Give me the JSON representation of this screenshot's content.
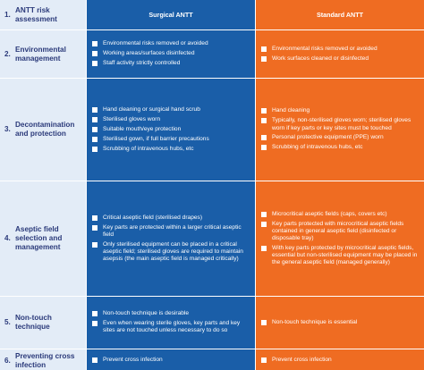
{
  "header": {
    "step": "1.",
    "title": "ANTT risk assessment",
    "col_surgical": "Surgical ANTT",
    "col_standard": "Standard ANTT"
  },
  "rows": [
    {
      "step": "2.",
      "label": "Environmental management",
      "surgical": [
        "Environmental risks removed or avoided",
        "Working areas/surfaces disinfected",
        "Staff activity strictly controlled"
      ],
      "standard": [
        "Environmental risks removed or avoided",
        "Work surfaces cleaned or disinfected"
      ]
    },
    {
      "step": "3.",
      "label": "Decontamination and protection",
      "surgical": [
        "Hand cleaning or surgical hand scrub",
        "Sterilised gloves worn",
        "Suitable mouth/eye protection",
        "Sterilised gown, if full barrier precautions",
        "Scrubbing of intravenous hubs, etc"
      ],
      "standard": [
        "Hand cleaning",
        "Typically, non-sterilised gloves worn; sterilised gloves worn if key parts or key sites must be touched",
        "Personal protective equipment (PPE) worn",
        "Scrubbing of intravenous hubs, etc"
      ]
    },
    {
      "step": "4.",
      "label": "Aseptic field selection and management",
      "surgical": [
        "Critical aseptic field (sterilised drapes)",
        "Key parts are protected within a larger critical aseptic field",
        "Only sterilised equipment can be placed in a critical aseptic field; sterilised gloves are required to maintain asepsis (the main aseptic field is managed critically)"
      ],
      "standard": [
        "Microcritical aseptic fields (caps, covers etc)",
        "Key parts protected with microcritical aseptic fields contained in general aseptic field (disinfected or disposable tray)",
        "With key parts protected by microcritical aseptic fields, essential but non-sterilised equipment may be placed in the general aseptic field (managed generally)"
      ]
    },
    {
      "step": "5.",
      "label": "Non-touch technique",
      "surgical": [
        "Non-touch technique is desirable",
        "Even when wearing sterile gloves, key parts and key sites are not touched unless necessary to do so"
      ],
      "standard": [
        "Non-touch technique is essential"
      ]
    },
    {
      "step": "6.",
      "label": "Preventing cross infection",
      "surgical": [
        "Prevent cross infection"
      ],
      "standard": [
        "Prevent cross infection"
      ]
    }
  ],
  "colors": {
    "surgical": "#1a5ea8",
    "standard": "#ef6c22",
    "label_bg": "#e3ecf7",
    "label_text": "#2b3a7a"
  }
}
